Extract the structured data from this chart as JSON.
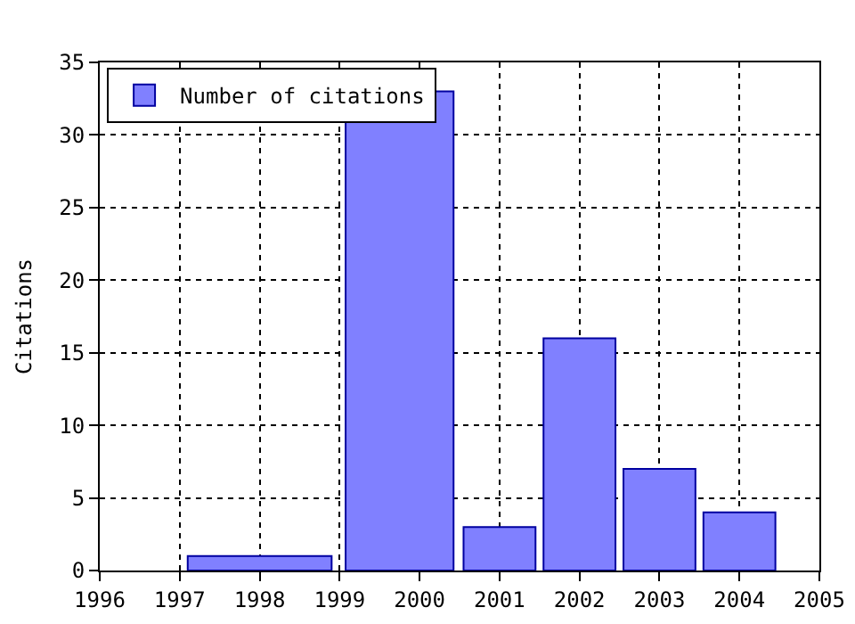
{
  "chart_data": {
    "type": "histogram",
    "ylabel": "Citations",
    "bins": [
      1997,
      1999,
      2000.5,
      2001.5,
      2002.5,
      2003.5,
      2004.5
    ],
    "series": [
      {
        "name": "Number of citations",
        "color": "#8080ff",
        "values": [
          1,
          33,
          3,
          16,
          7,
          4
        ]
      }
    ],
    "xlim": [
      1996,
      2005
    ],
    "xticks": [
      1996,
      1997,
      1998,
      1999,
      2000,
      2001,
      2002,
      2003,
      2004,
      2005
    ],
    "ylim": [
      0,
      35
    ],
    "yticks": [
      0,
      5,
      10,
      15,
      20,
      25,
      30,
      35
    ],
    "grid": true,
    "line_style": "dotted",
    "legend": "top left"
  }
}
